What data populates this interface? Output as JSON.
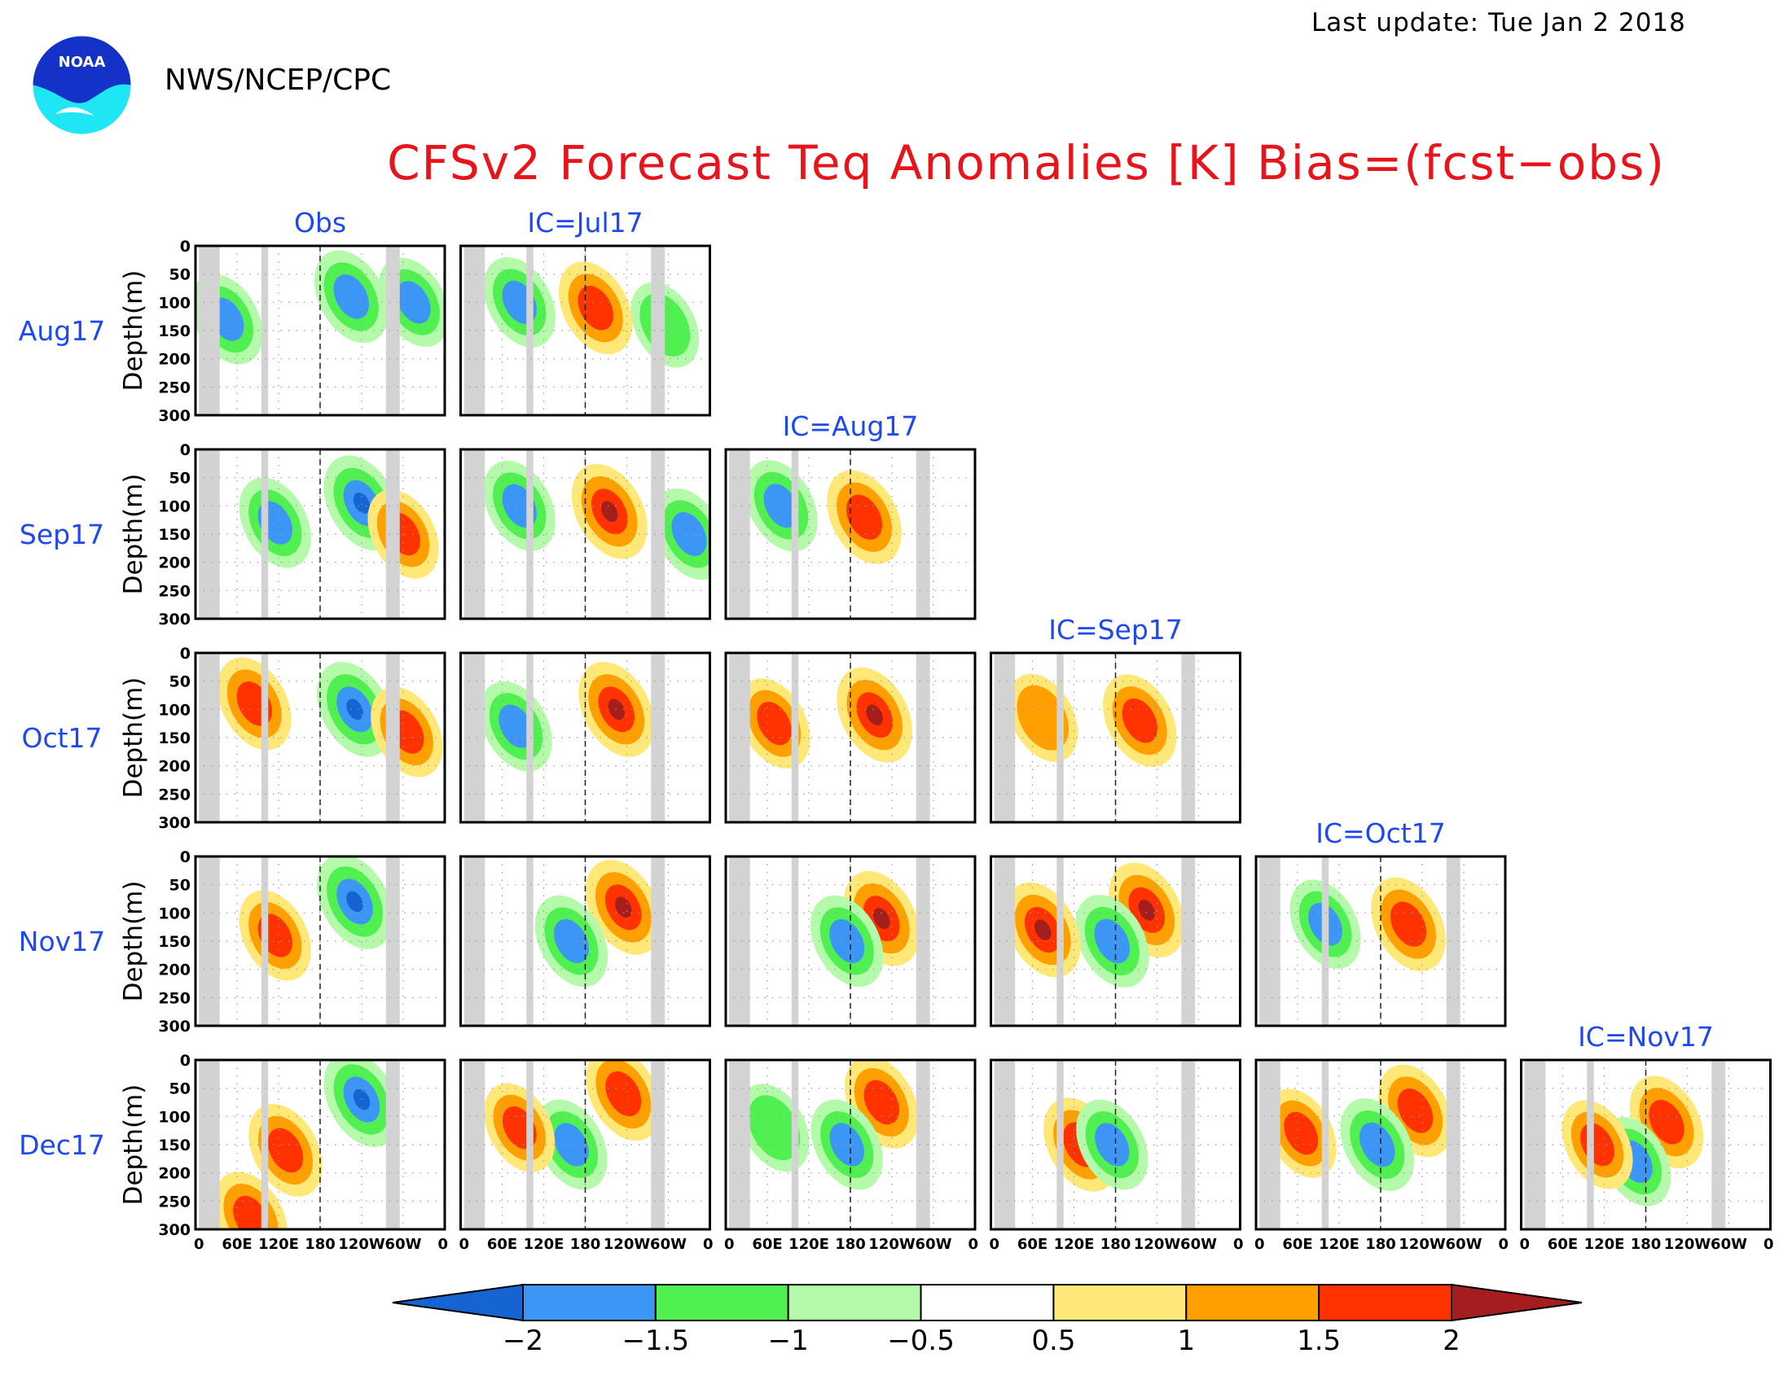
{
  "header": {
    "last_update": "Last update: Tue Jan 2 2018",
    "agency": "NWS/NCEP/CPC",
    "logo_text": "NOAA",
    "title": "CFSv2 Forecast Teq Anomalies [K] Bias=(fcst−obs)"
  },
  "colors": {
    "title": "#e8141c",
    "labels": "#1e48f0",
    "land_mask": "#d3d3d3",
    "logo_blue": "#1432c8",
    "logo_cyan": "#1ee6f5"
  },
  "chart_data": {
    "type": "heatmap",
    "title": "CFSv2 Forecast Teq Anomalies [K] Bias=(fcst−obs)",
    "ylabel": "Depth(m)",
    "xlabel": "",
    "x_ticks": [
      "0",
      "60E",
      "120E",
      "180",
      "120W",
      "60W",
      "0"
    ],
    "y_ticks": [
      "0",
      "50",
      "100",
      "150",
      "200",
      "250",
      "300"
    ],
    "ylim": [
      300,
      0
    ],
    "xlim_deg_east": [
      0,
      360
    ],
    "land_mask_lon_ranges": [
      [
        5,
        35
      ],
      [
        95,
        105
      ],
      [
        275,
        295
      ]
    ],
    "dashed_line_lon": 180,
    "columns": [
      "Obs",
      "IC=Jul17",
      "IC=Aug17",
      "IC=Sep17",
      "IC=Oct17",
      "IC=Nov17"
    ],
    "rows": [
      "Aug17",
      "Sep17",
      "Oct17",
      "Nov17",
      "Dec17"
    ],
    "panels_per_row": [
      2,
      3,
      4,
      5,
      6
    ],
    "colorbar": {
      "levels": [
        "−2",
        "−1.5",
        "−1",
        "−0.5",
        "0.5",
        "1",
        "1.5",
        "2"
      ],
      "colors": [
        "#1664d2",
        "#3c96f5",
        "#50f050",
        "#b4faaa",
        "#ffffff",
        "#ffe878",
        "#ffa000",
        "#ff3200",
        "#a51e1e"
      ]
    },
    "anomaly_features": [
      {
        "row": 0,
        "col": 0,
        "blobs": [
          {
            "lon": 225,
            "depth": 90,
            "value": -1.8
          },
          {
            "lon": 45,
            "depth": 130,
            "value": -1.6
          },
          {
            "lon": 315,
            "depth": 100,
            "value": -1.5
          }
        ]
      },
      {
        "row": 0,
        "col": 1,
        "blobs": [
          {
            "lon": 195,
            "depth": 110,
            "value": 1.8
          },
          {
            "lon": 85,
            "depth": 100,
            "value": -1.6
          },
          {
            "lon": 295,
            "depth": 140,
            "value": -1.2
          }
        ]
      },
      {
        "row": 1,
        "col": 0,
        "blobs": [
          {
            "lon": 240,
            "depth": 95,
            "value": -2.0
          },
          {
            "lon": 115,
            "depth": 130,
            "value": -1.6
          },
          {
            "lon": 300,
            "depth": 150,
            "value": 1.5
          }
        ]
      },
      {
        "row": 1,
        "col": 1,
        "blobs": [
          {
            "lon": 215,
            "depth": 110,
            "value": 2.0
          },
          {
            "lon": 85,
            "depth": 100,
            "value": -1.6
          },
          {
            "lon": 330,
            "depth": 150,
            "value": -1.7
          }
        ]
      },
      {
        "row": 1,
        "col": 2,
        "blobs": [
          {
            "lon": 200,
            "depth": 120,
            "value": 1.9
          },
          {
            "lon": 80,
            "depth": 100,
            "value": -1.7
          }
        ]
      },
      {
        "row": 2,
        "col": 0,
        "blobs": [
          {
            "lon": 230,
            "depth": 100,
            "value": -2.0
          },
          {
            "lon": 85,
            "depth": 90,
            "value": 1.8
          },
          {
            "lon": 305,
            "depth": 140,
            "value": 1.6
          }
        ]
      },
      {
        "row": 2,
        "col": 1,
        "blobs": [
          {
            "lon": 225,
            "depth": 100,
            "value": 2.0
          },
          {
            "lon": 80,
            "depth": 130,
            "value": -1.6
          }
        ]
      },
      {
        "row": 2,
        "col": 2,
        "blobs": [
          {
            "lon": 215,
            "depth": 110,
            "value": 2.0
          },
          {
            "lon": 70,
            "depth": 125,
            "value": 1.6
          }
        ]
      },
      {
        "row": 2,
        "col": 3,
        "blobs": [
          {
            "lon": 215,
            "depth": 120,
            "value": 1.8
          },
          {
            "lon": 75,
            "depth": 115,
            "value": 1.4
          }
        ]
      },
      {
        "row": 3,
        "col": 0,
        "blobs": [
          {
            "lon": 230,
            "depth": 80,
            "value": -2.0
          },
          {
            "lon": 115,
            "depth": 140,
            "value": 1.6
          }
        ]
      },
      {
        "row": 3,
        "col": 1,
        "blobs": [
          {
            "lon": 235,
            "depth": 90,
            "value": 2.0
          },
          {
            "lon": 160,
            "depth": 150,
            "value": -1.7
          }
        ]
      },
      {
        "row": 3,
        "col": 2,
        "blobs": [
          {
            "lon": 225,
            "depth": 110,
            "value": 2.0
          },
          {
            "lon": 175,
            "depth": 150,
            "value": -1.7
          }
        ]
      },
      {
        "row": 3,
        "col": 3,
        "blobs": [
          {
            "lon": 225,
            "depth": 95,
            "value": 2.0
          },
          {
            "lon": 175,
            "depth": 150,
            "value": -1.8
          },
          {
            "lon": 75,
            "depth": 130,
            "value": 2.0
          }
        ]
      },
      {
        "row": 3,
        "col": 4,
        "blobs": [
          {
            "lon": 220,
            "depth": 120,
            "value": 1.9
          },
          {
            "lon": 100,
            "depth": 120,
            "value": -1.5
          }
        ]
      },
      {
        "row": 4,
        "col": 0,
        "blobs": [
          {
            "lon": 240,
            "depth": 70,
            "value": -2.0
          },
          {
            "lon": 130,
            "depth": 160,
            "value": 1.8
          },
          {
            "lon": 80,
            "depth": 280,
            "value": 1.8
          }
        ]
      },
      {
        "row": 4,
        "col": 1,
        "blobs": [
          {
            "lon": 235,
            "depth": 60,
            "value": 1.9
          },
          {
            "lon": 160,
            "depth": 150,
            "value": -1.6
          },
          {
            "lon": 85,
            "depth": 120,
            "value": 1.5
          }
        ]
      },
      {
        "row": 4,
        "col": 2,
        "blobs": [
          {
            "lon": 225,
            "depth": 75,
            "value": 1.8
          },
          {
            "lon": 175,
            "depth": 150,
            "value": -1.6
          },
          {
            "lon": 70,
            "depth": 120,
            "value": -1.4
          }
        ]
      },
      {
        "row": 4,
        "col": 3,
        "blobs": [
          {
            "lon": 130,
            "depth": 150,
            "value": 1.9
          },
          {
            "lon": 175,
            "depth": 150,
            "value": -1.6
          }
        ]
      },
      {
        "row": 4,
        "col": 4,
        "blobs": [
          {
            "lon": 230,
            "depth": 90,
            "value": 1.8
          },
          {
            "lon": 175,
            "depth": 150,
            "value": -1.8
          },
          {
            "lon": 65,
            "depth": 130,
            "value": 1.5
          }
        ]
      },
      {
        "row": 4,
        "col": 5,
        "blobs": [
          {
            "lon": 210,
            "depth": 110,
            "value": 1.8
          },
          {
            "lon": 165,
            "depth": 180,
            "value": -1.5
          },
          {
            "lon": 110,
            "depth": 150,
            "value": 1.5
          }
        ]
      }
    ]
  }
}
